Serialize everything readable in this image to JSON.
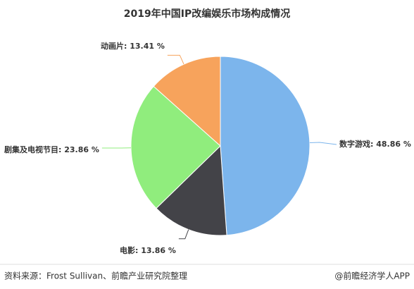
{
  "chart_data": {
    "type": "pie",
    "title": "2019年中国IP改编娱乐市场构成情况",
    "categories": [
      "数字游戏",
      "电影",
      "剧集及电视节目",
      "动画片"
    ],
    "values": [
      48.86,
      13.86,
      23.86,
      13.41
    ],
    "value_labels": [
      "48.86 %",
      "13.86 %",
      "23.86 %",
      "13.41 %"
    ],
    "label_separator": ": ",
    "colors": [
      "#7cb5ec",
      "#434348",
      "#90ed7d",
      "#f7a35c"
    ],
    "source": "资料来源：Frost Sullivan、前瞻产业研究院整理",
    "credit": "@前瞻经济学人APP"
  }
}
